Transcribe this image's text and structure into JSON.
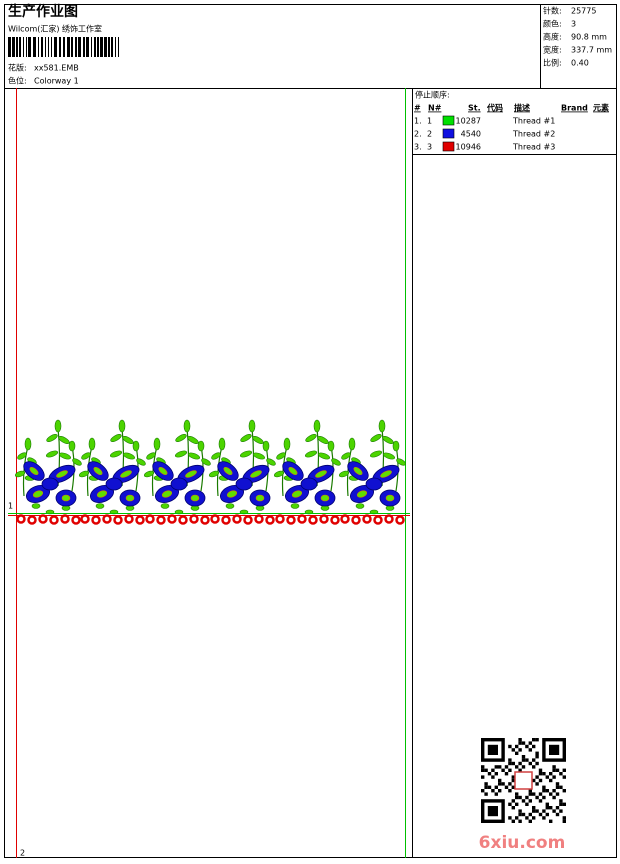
{
  "header": {
    "title": "生产作业图",
    "subtitle": "Wilcom(汇家) 绣饰工作室",
    "design_label": "花版:",
    "design": "xx581.EMB",
    "colorway_label": "色位:",
    "colorway": "Colorway 1"
  },
  "stats": [
    {
      "label": "针数:",
      "value": "25775"
    },
    {
      "label": "颜色:",
      "value": "3"
    },
    {
      "label": "高度:",
      "value": "90.8 mm"
    },
    {
      "label": "宽度:",
      "value": "337.7 mm"
    },
    {
      "label": "比例:",
      "value": "0.40"
    }
  ],
  "table": {
    "title": "停止顺序:",
    "headers": [
      "#",
      "N#",
      "St.",
      "代码",
      "描述",
      "Brand",
      "元素"
    ],
    "rows": [
      {
        "seq": "1.",
        "n": "1",
        "color": "#00e000",
        "code": "10287",
        "desc": "Thread #1"
      },
      {
        "seq": "2.",
        "n": "2",
        "color": "#1010e0",
        "code": "4540",
        "desc": "Thread #2"
      },
      {
        "seq": "3.",
        "n": "3",
        "color": "#e00000",
        "code": "10946",
        "desc": "Thread #3"
      }
    ]
  },
  "design_area": {
    "markers": [
      "1",
      "2"
    ]
  },
  "watermark": "6xiu.com"
}
